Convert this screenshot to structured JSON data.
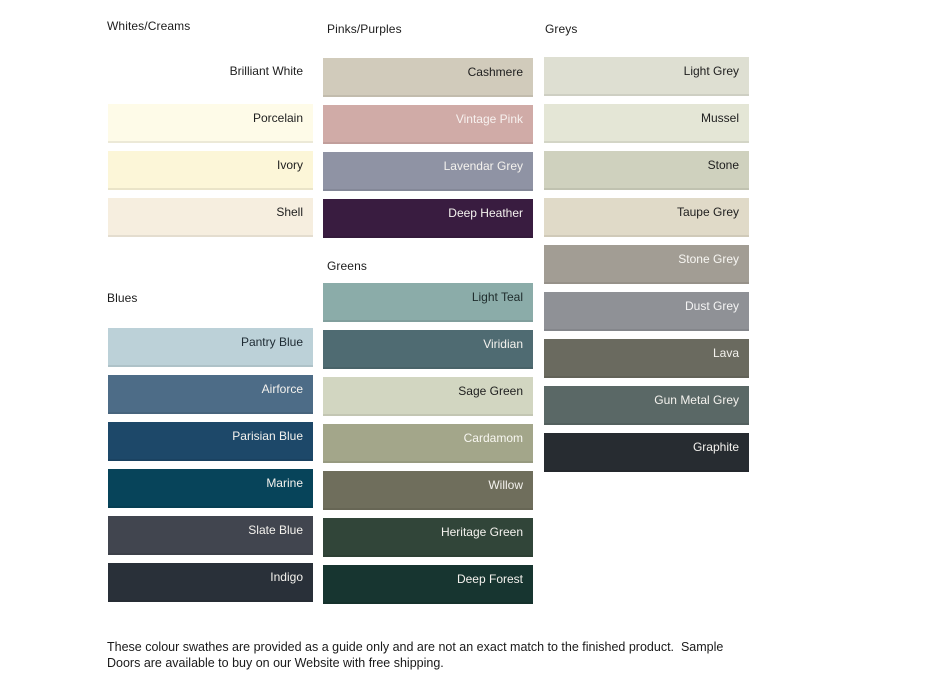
{
  "page": {
    "background": "#ffffff"
  },
  "columns": [
    {
      "groups": [
        {
          "header": "Whites/Creams",
          "swatches": [
            {
              "name": "Brilliant White",
              "color": "#FFFFFF",
              "text_color": "#1e1e1e"
            },
            {
              "name": "Porcelain",
              "color": "#FEFBE8",
              "text_color": "#1e1e1e"
            },
            {
              "name": "Ivory",
              "color": "#FCF6D8",
              "text_color": "#1e1e1e"
            },
            {
              "name": "Shell",
              "color": "#F6EEDF",
              "text_color": "#1e1e1e"
            }
          ]
        },
        {
          "header": "Blues",
          "swatches": [
            {
              "name": "Pantry Blue",
              "color": "#BCD1D8",
              "text_color": "#1e2b33"
            },
            {
              "name": "Airforce",
              "color": "#4D6C87",
              "text_color": "#f4f2ee"
            },
            {
              "name": "Parisian Blue",
              "color": "#1D4869",
              "text_color": "#f4f2ee"
            },
            {
              "name": "Marine",
              "color": "#07445A",
              "text_color": "#f4f2ee"
            },
            {
              "name": "Slate Blue",
              "color": "#41454F",
              "text_color": "#f4f2ee"
            },
            {
              "name": "Indigo",
              "color": "#293039",
              "text_color": "#f4f2ee"
            }
          ]
        }
      ]
    },
    {
      "groups": [
        {
          "header": "Pinks/Purples",
          "swatches": [
            {
              "name": "Cashmere",
              "color": "#D1CBBB",
              "text_color": "#1e1e1e"
            },
            {
              "name": "Vintage Pink",
              "color": "#D0ABA7",
              "text_color": "#f7f1ef"
            },
            {
              "name": "Lavendar Grey",
              "color": "#8F93A4",
              "text_color": "#f4f2ee"
            },
            {
              "name": "Deep Heather",
              "color": "#391C40",
              "text_color": "#f4f2ee"
            }
          ]
        },
        {
          "header": "Greens",
          "swatches": [
            {
              "name": "Light Teal",
              "color": "#8BACA9",
              "text_color": "#1e2b2b"
            },
            {
              "name": "Viridian",
              "color": "#4F6B72",
              "text_color": "#f4f2ee"
            },
            {
              "name": "Sage Green",
              "color": "#D2D6C1",
              "text_color": "#1e1e1e"
            },
            {
              "name": "Cardamom",
              "color": "#A3A68A",
              "text_color": "#f7f6f0"
            },
            {
              "name": "Willow",
              "color": "#6F6E5C",
              "text_color": "#f4f2ee"
            },
            {
              "name": "Heritage Green",
              "color": "#314539",
              "text_color": "#f4f2ee"
            },
            {
              "name": "Deep Forest",
              "color": "#173530",
              "text_color": "#f4f2ee"
            }
          ]
        }
      ]
    },
    {
      "groups": [
        {
          "header": "Greys",
          "swatches": [
            {
              "name": "Light Grey",
              "color": "#DEDFD2",
              "text_color": "#1e1e1e"
            },
            {
              "name": "Mussel",
              "color": "#E4E6D6",
              "text_color": "#1e1e1e"
            },
            {
              "name": "Stone",
              "color": "#CFD1BE",
              "text_color": "#1e1e1e"
            },
            {
              "name": "Taupe Grey",
              "color": "#E0DAC8",
              "text_color": "#1e1e1e"
            },
            {
              "name": "Stone Grey",
              "color": "#A29D94",
              "text_color": "#f7f6f2"
            },
            {
              "name": "Dust Grey",
              "color": "#8F9196",
              "text_color": "#f4f4f4"
            },
            {
              "name": "Lava",
              "color": "#6A6A5F",
              "text_color": "#f4f2ee"
            },
            {
              "name": "Gun Metal Grey",
              "color": "#5A6866",
              "text_color": "#f4f2ee"
            },
            {
              "name": "Graphite",
              "color": "#272C31",
              "text_color": "#f4f2ee"
            }
          ]
        }
      ]
    }
  ],
  "footer": {
    "line1": "These colour swathes are provided as a guide only and are not an exact match to the finished product.  Sample",
    "line2": "Doors are available to buy on our Website with free shipping."
  }
}
